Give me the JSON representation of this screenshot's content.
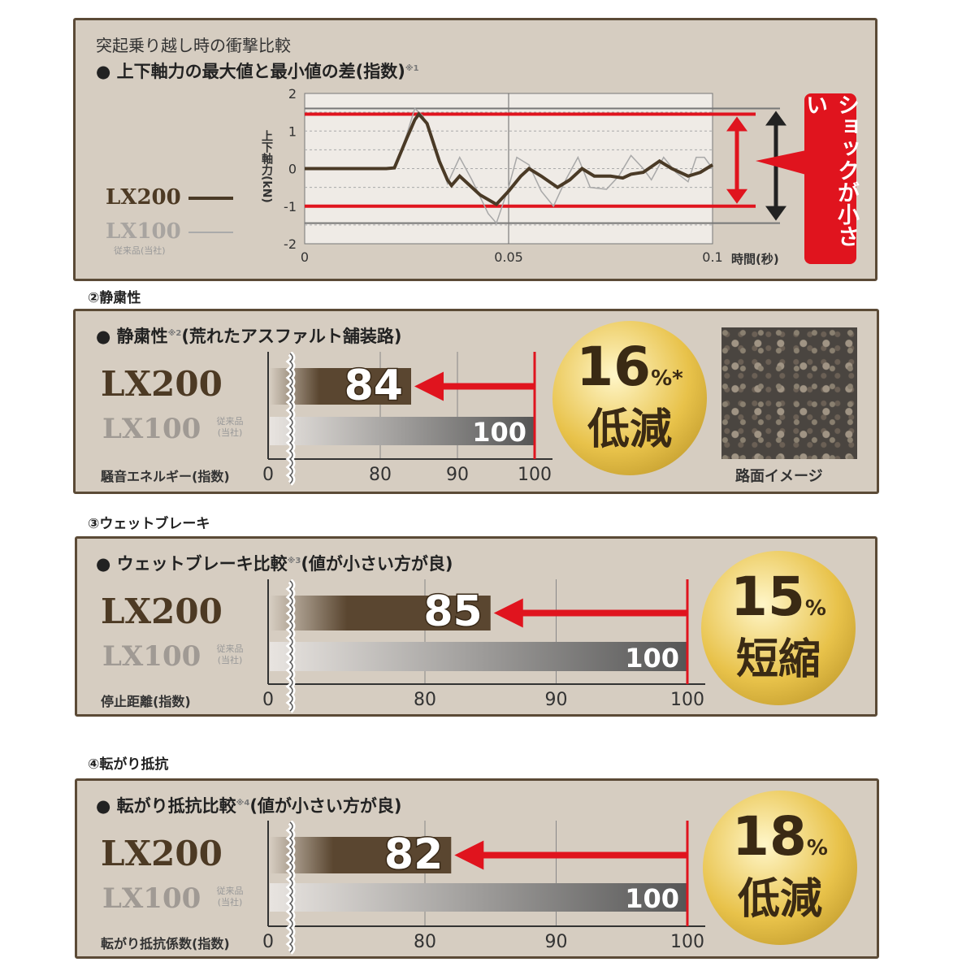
{
  "legend": {
    "lx200": "LX200",
    "lx100": "LX100",
    "lx100_note": "従来品(当社)"
  },
  "impact": {
    "heading": "突起乗り越し時の衝撃比較",
    "title": "上下軸力の最大値と最小値の差(指数)",
    "note": "※1",
    "callout": "ショックが小さい",
    "colors": {
      "lx200": "#4a3a26",
      "lx100": "#a8a8a8",
      "accent": "#e0141e"
    }
  },
  "sections": [
    {
      "label": "②静粛性",
      "title": "静粛性",
      "note": "※2",
      "title_suffix": "(荒れたアスファルト舗装路)",
      "axis_label": "騒音エネルギー(指数)",
      "badge_pct": "16",
      "badge_unit": "%*",
      "badge_text": "低減",
      "image_caption": "路面イメージ"
    },
    {
      "label": "③ウェットブレーキ",
      "title": "ウェットブレーキ比較",
      "note": "※3",
      "title_suffix": "(値が小さい方が良)",
      "axis_label": "停止距離(指数)",
      "badge_pct": "15",
      "badge_unit": "%",
      "badge_text": "短縮"
    },
    {
      "label": "④転がり抵抗",
      "title": "転がり抵抗比較",
      "note": "※4",
      "title_suffix": "(値が小さい方が良)",
      "axis_label": "転がり抵抗係数(指数)",
      "badge_pct": "18",
      "badge_unit": "%",
      "badge_text": "低減"
    }
  ],
  "chart_data": [
    {
      "type": "line",
      "xlabel": "時間(秒)",
      "ylabel": "上下軸力(kN)",
      "xlim": [
        0,
        0.1
      ],
      "ylim": [
        -2,
        2
      ],
      "xticks": [
        "0",
        "0.05",
        "0.1"
      ],
      "yticks": [
        "2",
        "1",
        "0",
        "-1",
        "-2"
      ],
      "grid": true,
      "legend": "left",
      "series": [
        {
          "name": "LX200",
          "x": [
            0,
            0.02,
            0.022,
            0.025,
            0.027,
            0.028,
            0.03,
            0.033,
            0.035,
            0.036,
            0.038,
            0.04,
            0.043,
            0.047,
            0.05,
            0.053,
            0.055,
            0.058,
            0.062,
            0.065,
            0.068,
            0.071,
            0.075,
            0.078,
            0.08,
            0.083,
            0.087,
            0.09,
            0.094,
            0.097,
            0.1
          ],
          "y": [
            0,
            0,
            0.02,
            0.8,
            1.3,
            1.45,
            1.2,
            0.2,
            -0.3,
            -0.45,
            -0.2,
            -0.4,
            -0.7,
            -0.95,
            -0.6,
            -0.2,
            0,
            -0.2,
            -0.5,
            -0.3,
            0,
            -0.2,
            -0.2,
            -0.25,
            -0.15,
            -0.1,
            0.2,
            0,
            -0.2,
            -0.1,
            0.1
          ]
        },
        {
          "name": "LX100",
          "x": [
            0,
            0.022,
            0.025,
            0.027,
            0.029,
            0.033,
            0.035,
            0.038,
            0.041,
            0.045,
            0.047,
            0.05,
            0.052,
            0.055,
            0.058,
            0.061,
            0.064,
            0.067,
            0.07,
            0.074,
            0.077,
            0.08,
            0.083,
            0.085,
            0.088,
            0.091,
            0.094,
            0.096,
            0.098,
            0.1
          ],
          "y": [
            0,
            0,
            0.9,
            1.6,
            1.4,
            0.3,
            -0.4,
            0.3,
            -0.3,
            -1.2,
            -1.45,
            -0.5,
            0.3,
            0.1,
            -0.6,
            -1.0,
            -0.3,
            0.3,
            -0.5,
            -0.55,
            -0.2,
            0.35,
            0,
            -0.3,
            0.3,
            -0.1,
            -0.35,
            0.3,
            0.3,
            0
          ]
        }
      ],
      "reference_lines": {
        "lx200_max": 1.45,
        "lx200_min": -1.0,
        "lx100_max": 1.6,
        "lx100_min": -1.45
      }
    },
    {
      "type": "bar",
      "categories": [
        "LX200",
        "LX100"
      ],
      "values": [
        84,
        100
      ],
      "xticks": [
        "0",
        "80",
        "90",
        "100"
      ],
      "xlim": [
        80,
        100
      ]
    },
    {
      "type": "bar",
      "categories": [
        "LX200",
        "LX100"
      ],
      "values": [
        85,
        100
      ],
      "xticks": [
        "0",
        "80",
        "90",
        "100"
      ],
      "xlim": [
        80,
        100
      ]
    },
    {
      "type": "bar",
      "categories": [
        "LX200",
        "LX100"
      ],
      "values": [
        82,
        100
      ],
      "xticks": [
        "0",
        "80",
        "90",
        "100"
      ],
      "xlim": [
        80,
        100
      ]
    }
  ]
}
